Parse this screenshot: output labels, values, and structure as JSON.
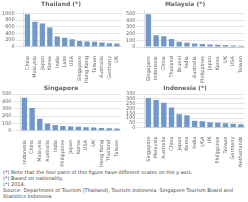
{
  "chart_data": [
    {
      "type": "bar",
      "title": "Thailand (*)",
      "categories": [
        "China",
        "Malaysia",
        "Japan",
        "Korea",
        "India",
        "Laos",
        "USA",
        "Singapore",
        "Hong Kong",
        "Taiwan",
        "Australia",
        "Germany",
        "UK"
      ],
      "values": [
        980,
        750,
        700,
        580,
        310,
        270,
        230,
        175,
        160,
        155,
        130,
        110,
        100
      ],
      "color": "#7098c8",
      "ylim": [
        0,
        1100
      ],
      "yticks": [
        0,
        200,
        400,
        600,
        800,
        1000
      ],
      "grid": true
    },
    {
      "type": "bar",
      "title": "Malaysia (*)",
      "categories": [
        "Singapore",
        "Indonesia",
        "China",
        "Thailand",
        "Brunei",
        "India",
        "Australia",
        "Philippines",
        "Japan",
        "Korea",
        "UK",
        "USA",
        "Taiwan"
      ],
      "values": [
        490,
        175,
        160,
        120,
        80,
        65,
        55,
        45,
        40,
        35,
        30,
        25,
        20
      ],
      "color": "#7098c8",
      "ylim": [
        0,
        550
      ],
      "yticks": [
        0,
        100,
        200,
        300,
        400,
        500
      ],
      "grid": true
    },
    {
      "type": "bar",
      "title": "Singapore",
      "categories": [
        "Indonesia",
        "China",
        "Malaysia",
        "Australia",
        "India",
        "Philippines",
        "Japan",
        "Korea",
        "USA",
        "UK",
        "Hong Kong",
        "Thailand",
        "Taiwan"
      ],
      "values": [
        450,
        310,
        165,
        100,
        80,
        65,
        60,
        55,
        50,
        45,
        40,
        35,
        30
      ],
      "color": "#7098c8",
      "ylim": [
        0,
        500
      ],
      "yticks": [
        0,
        100,
        200,
        300,
        400,
        500
      ],
      "grid": true
    },
    {
      "type": "bar",
      "title": "Indonesia (*)",
      "categories": [
        "Singapore",
        "Malaysia",
        "Australia",
        "China",
        "Japan",
        "Korea",
        "India",
        "USA",
        "UK",
        "Philippines",
        "Taiwan",
        "Germany",
        "Netherlands"
      ],
      "values": [
        310,
        290,
        260,
        210,
        140,
        130,
        70,
        65,
        55,
        50,
        45,
        40,
        35
      ],
      "color": "#7098c8",
      "ylim": [
        0,
        350
      ],
      "yticks": [
        0,
        50,
        100,
        150,
        200,
        250,
        300,
        350
      ],
      "grid": true
    }
  ],
  "annotations": [
    "(*) Note that the four pairs of this figure have different scales on the y-axis.",
    "(*) Based on nationality.",
    "(*) 2014.",
    "Source: Department of Tourism (Thailand), Tourism Indonesia, Singapore Tourism Board and Statistics Indonesia"
  ]
}
